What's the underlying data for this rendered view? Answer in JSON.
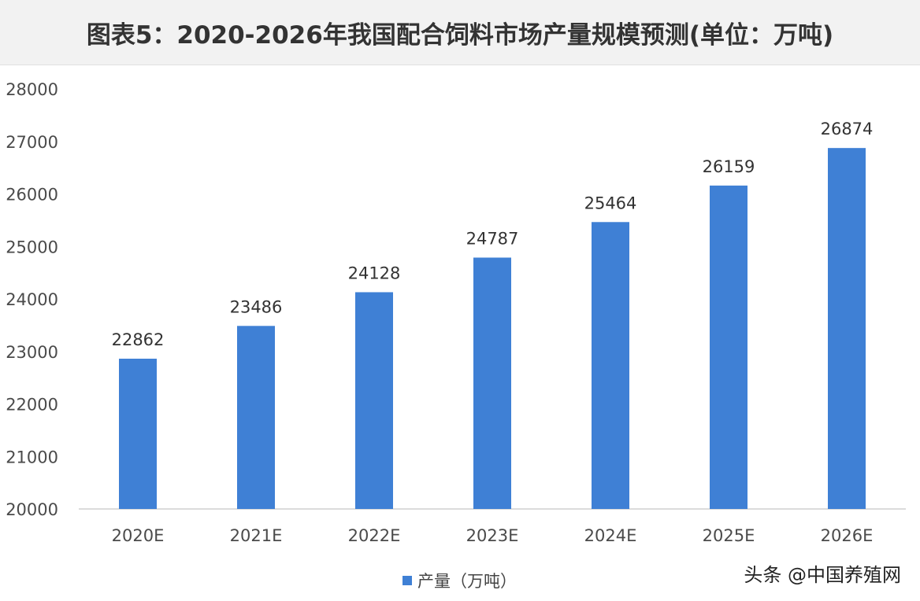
{
  "title": "图表5：2020-2026年我国配合饲料市场产量规模预测(单位：万吨)",
  "source": "头条 @中国养殖网",
  "chart_data": {
    "type": "bar",
    "categories": [
      "2020E",
      "2021E",
      "2022E",
      "2023E",
      "2024E",
      "2025E",
      "2026E"
    ],
    "series": [
      {
        "name": "产量（万吨）",
        "values": [
          22862,
          23486,
          24128,
          24787,
          25464,
          26159,
          26874
        ]
      }
    ],
    "ylim": [
      20000,
      28000
    ],
    "yticks": [
      20000,
      21000,
      22000,
      23000,
      24000,
      25000,
      26000,
      27000,
      28000
    ],
    "xlabel": "",
    "ylabel": "",
    "grid": false,
    "legend_position": "bottom-center",
    "bar_color": "#3f80d5",
    "data_labels": true
  }
}
